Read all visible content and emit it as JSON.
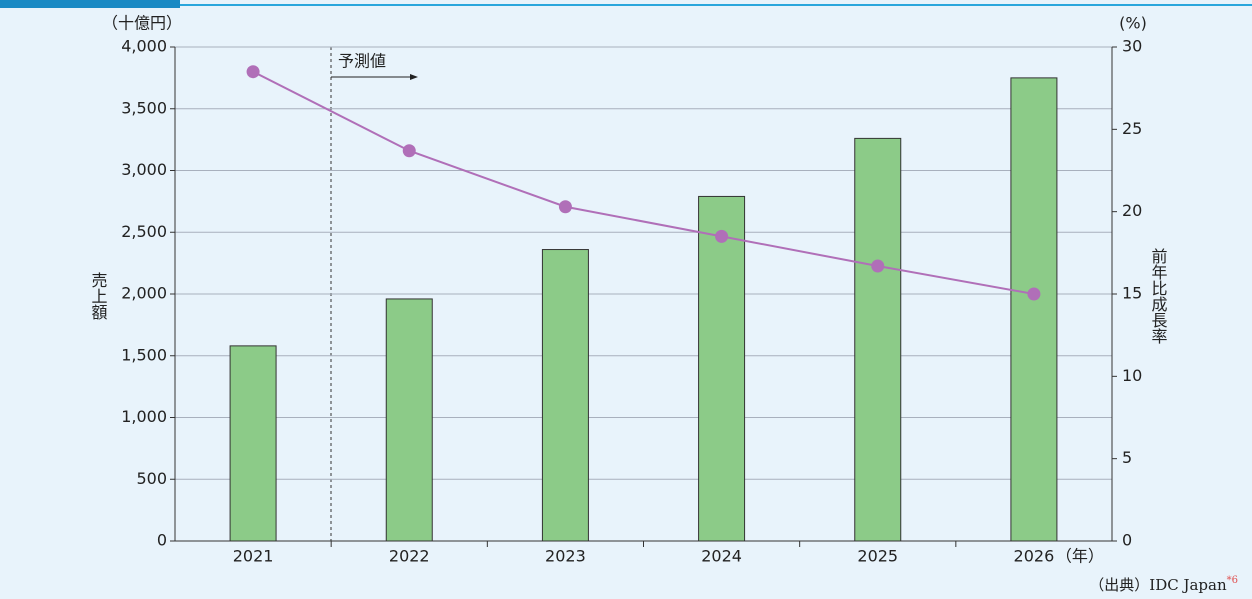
{
  "chart_data": {
    "type": "combo",
    "y_unit": "（十億円）",
    "y2_unit": "(%)",
    "ylabel": "売上額",
    "y2label": "前年比成長率",
    "x_unit": "（年）",
    "annotation": "予測値",
    "source": "（出典）IDC Japan",
    "source_note": "*6",
    "categories": [
      "2021",
      "2022",
      "2023",
      "2024",
      "2025",
      "2026"
    ],
    "series": [
      {
        "type": "bar",
        "color": "#8ccb88",
        "values": [
          1580,
          1960,
          2360,
          2790,
          3260,
          3750
        ]
      },
      {
        "type": "line",
        "axis": "y2",
        "color": "#b06fb8",
        "values": [
          28.5,
          23.7,
          20.3,
          18.5,
          16.7,
          15.0
        ]
      }
    ],
    "ylim": [
      0,
      4000
    ],
    "yticks": [
      0,
      500,
      {
        "value": 1000,
        "label": "1,000"
      },
      {
        "value": 1500,
        "label": "1,500"
      },
      {
        "value": 2000,
        "label": "2,000"
      },
      {
        "value": 2500,
        "label": "2,500"
      },
      {
        "value": 3000,
        "label": "3,000"
      },
      {
        "value": 3500,
        "label": "3,500"
      },
      {
        "value": 4000,
        "label": "4,000"
      }
    ],
    "y2lim": [
      0,
      30
    ],
    "y2ticks": [
      0,
      5,
      10,
      15,
      20,
      25,
      30
    ],
    "grid": true
  }
}
